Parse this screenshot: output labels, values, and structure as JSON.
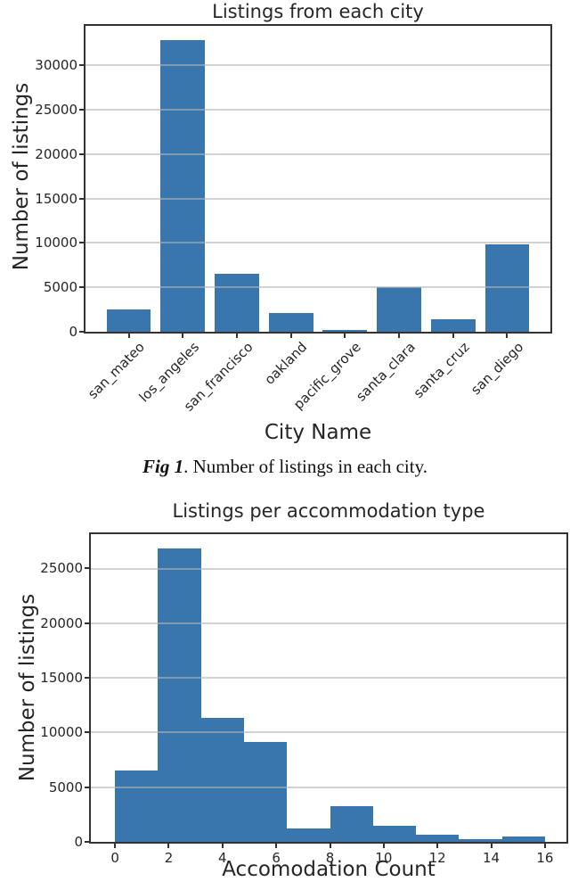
{
  "caption": {
    "label": "Fig 1",
    "text": ". Number of listings in each city."
  },
  "colors": {
    "bar_blue": "#3a76ae",
    "spine": "#333333",
    "gridline_rgba": "rgba(180,180,180,0.6)",
    "text": "#262626"
  },
  "chart_data": [
    {
      "type": "bar",
      "title": "Listings from each city",
      "xlabel": "City Name",
      "ylabel": "Number of listings",
      "categories": [
        "san_mateo",
        "los_angeles",
        "san_francisco",
        "oakland",
        "pacific_grove",
        "santa_clara",
        "santa_cruz",
        "san_diego"
      ],
      "values": [
        2550,
        32800,
        6500,
        2100,
        250,
        5000,
        1450,
        9800
      ],
      "yticks": [
        0,
        5000,
        10000,
        15000,
        20000,
        25000,
        30000
      ],
      "ylim": [
        0,
        34440
      ],
      "xlim": [
        -0.8,
        7.8
      ],
      "bar_width": 0.82,
      "bar_color": "#3a76ae",
      "grid": true,
      "xtick_rotation": 45,
      "legend": "none"
    },
    {
      "type": "histogram",
      "title": "Listings per accommodation type",
      "xlabel": "Accomodation Count",
      "ylabel": "Number of listings",
      "bin_edges": [
        0,
        1.6,
        3.2,
        4.8,
        6.4,
        8.0,
        9.6,
        11.2,
        12.8,
        14.4,
        16.0
      ],
      "counts": [
        6500,
        26800,
        11300,
        9100,
        1250,
        3300,
        1450,
        650,
        250,
        500
      ],
      "xticks": [
        0,
        2,
        4,
        6,
        8,
        10,
        12,
        14,
        16
      ],
      "yticks": [
        0,
        5000,
        10000,
        15000,
        20000,
        25000
      ],
      "ylim": [
        0,
        28140
      ],
      "xlim": [
        -0.9,
        16.8
      ],
      "bar_color": "#3a76ae",
      "grid": true,
      "legend": "none"
    }
  ]
}
